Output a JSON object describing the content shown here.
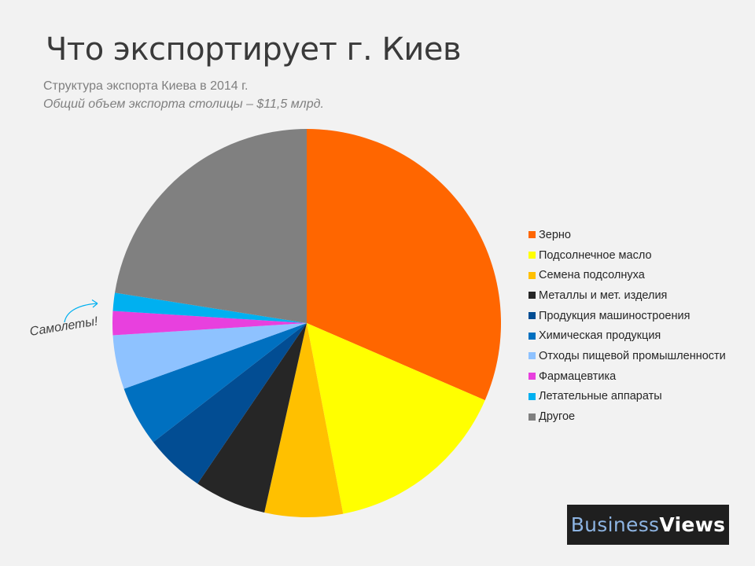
{
  "header": {
    "title": "Что экспортирует г. Киев",
    "subtitle": "Структура экспорта Киева в 2014 г.",
    "subtitle2": "Общий объем экспорта столицы – $11,5 млрд."
  },
  "annotation": {
    "text": "Самолеты!",
    "target": "Летательные аппараты"
  },
  "logo": {
    "part1": "Business",
    "part2": "Views"
  },
  "chart_data": {
    "type": "pie",
    "title": "Что экспортирует г. Киев",
    "start_angle_deg": 0,
    "direction": "clockwise",
    "legend_position": "right",
    "slices": [
      {
        "label": "Зерно",
        "value": 31.5,
        "color": "#ff6600"
      },
      {
        "label": "Подсолнечное  масло",
        "value": 15.5,
        "color": "#ffff00"
      },
      {
        "label": "Семена подсолнуха",
        "value": 6.5,
        "color": "#ffc000"
      },
      {
        "label": "Металлы  и мет. изделия",
        "value": 6.0,
        "color": "#262626"
      },
      {
        "label": "Продукция машиностроения",
        "value": 5.0,
        "color": "#024d93"
      },
      {
        "label": "Химическая продукция",
        "value": 5.0,
        "color": "#0070c0"
      },
      {
        "label": "Отходы пищевой  промышленности",
        "value": 4.5,
        "color": "#8ec2ff"
      },
      {
        "label": "Фармацевтика",
        "value": 2.0,
        "color": "#e840de"
      },
      {
        "label": "Летательные аппараты",
        "value": 1.5,
        "color": "#00b0f0"
      },
      {
        "label": "Другое",
        "value": 22.5,
        "color": "#808080"
      }
    ]
  }
}
